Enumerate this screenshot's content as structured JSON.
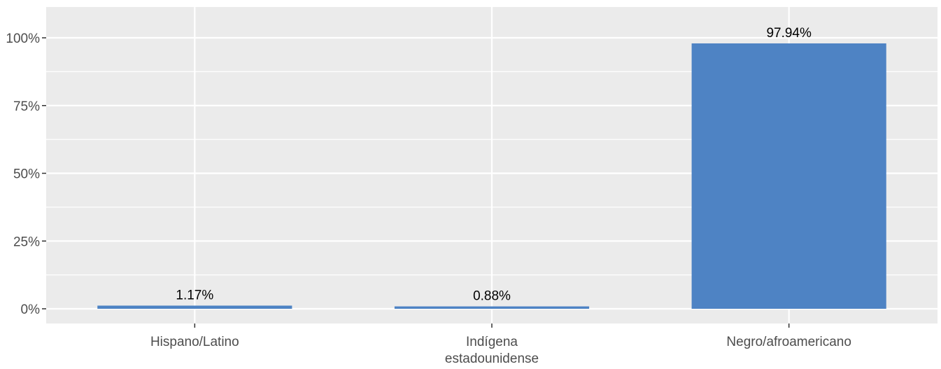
{
  "chart_data": {
    "type": "bar",
    "categories": [
      [
        "Hispano/Latino"
      ],
      [
        "Indígena",
        "estadounidense"
      ],
      [
        "Negro/afroamericano"
      ]
    ],
    "values": [
      1.17,
      0.88,
      97.94
    ],
    "value_labels": [
      "1.17%",
      "0.88%",
      "97.94%"
    ],
    "title": "",
    "xlabel": "",
    "ylabel": "",
    "ylim": [
      0,
      100
    ],
    "yticks": [
      0,
      25,
      50,
      75,
      100
    ],
    "ytick_labels": [
      "0%",
      "25%",
      "50%",
      "75%",
      "100%"
    ],
    "grid": true,
    "legend": "none",
    "colors": {
      "bar": "#4e83c4",
      "panel_background": "#ebebeb",
      "gridline": "#ffffff",
      "tick_mark": "#333333"
    }
  }
}
